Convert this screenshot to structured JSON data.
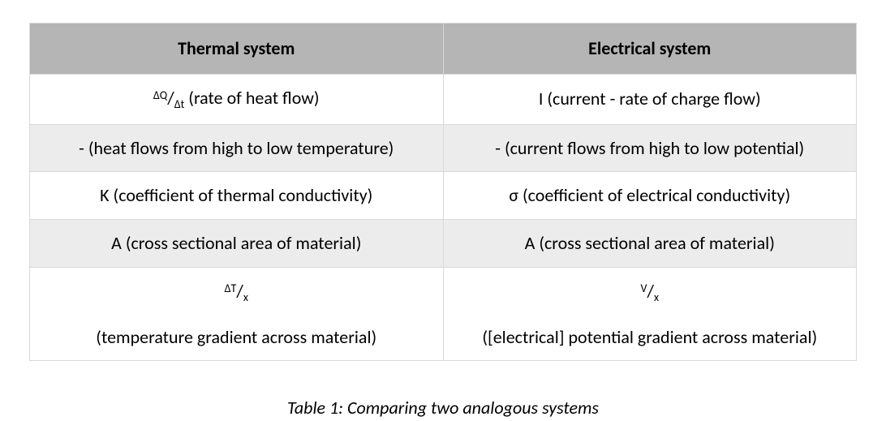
{
  "table": {
    "columns": [
      "Thermal system",
      "Electrical system"
    ],
    "header_bg": "#b5b5b5",
    "row_bg_alt": "#ececec",
    "row_bg": "#ffffff",
    "border_color": "#d9d9d9",
    "font_color": "#000000",
    "header_fontsize": 22,
    "cell_fontsize": 22,
    "rows": [
      {
        "thermal_frac_top": "ΔQ",
        "thermal_frac_bot": "Δt",
        "thermal_rest": " (rate of heat flow)",
        "electrical": "I (current - rate of charge flow)"
      },
      {
        "thermal": "- (heat flows from high to low temperature)",
        "electrical": "- (current flows from high to low potential)"
      },
      {
        "thermal": "K (coefficient of thermal conductivity)",
        "electrical": "σ (coefficient of electrical conductivity)"
      },
      {
        "thermal": "A (cross sectional area of material)",
        "electrical": "A (cross sectional area of material)"
      },
      {
        "thermal_frac_top": "ΔT",
        "thermal_frac_bot": "x",
        "thermal_sub": "(temperature gradient across material)",
        "electrical_frac_top": "V",
        "electrical_frac_bot": "x",
        "electrical_sub": "([electrical] potential gradient across material)"
      }
    ]
  },
  "caption": "Table 1: Comparing two analogous systems"
}
